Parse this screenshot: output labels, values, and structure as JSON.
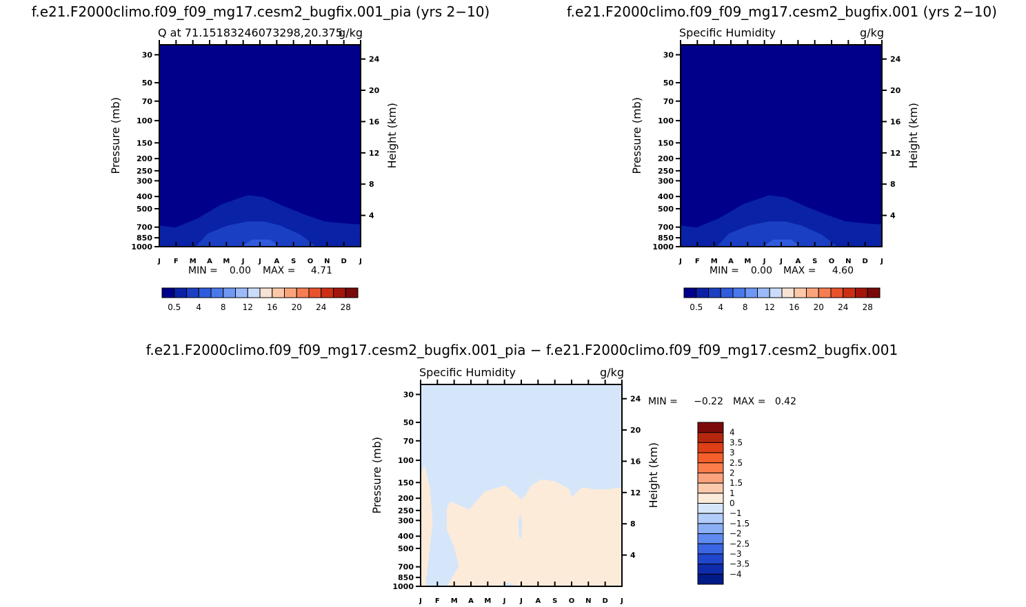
{
  "figure": {
    "case_a": "f.e21.F2000climo.f09_f09_mg17.cesm2_bugfix.001_pia",
    "case_b": "f.e21.F2000climo.f09_f09_mg17.cesm2_bugfix.001",
    "panel_a_title": "f.e21.F2000climo.f09_f09_mg17.cesm2_bugfix.001_pia (yrs 2−10)",
    "panel_b_title": "f.e21.F2000climo.f09_f09_mg17.cesm2_bugfix.001 (yrs 2−10)",
    "diff_title": "f.e21.F2000climo.f09_f09_mg17.cesm2_bugfix.001_pia − f.e21.F2000climo.f09_f09_mg17.cesm2_bugfix.001"
  },
  "chart_data": [
    {
      "type": "heatmap",
      "id": "panel_a",
      "left_label": "Q at 71.15183246073298,20.375",
      "right_label": "g/kg",
      "ylabel": "Pressure (mb)",
      "y2label": "Height (km)",
      "x_ticks": [
        "J",
        "F",
        "M",
        "A",
        "M",
        "J",
        "J",
        "A",
        "S",
        "O",
        "N",
        "D",
        "J"
      ],
      "y_ticks": [
        30,
        50,
        70,
        100,
        150,
        200,
        250,
        300,
        400,
        500,
        700,
        850,
        1000
      ],
      "y2_ticks": [
        24,
        20,
        16,
        12,
        8,
        4
      ],
      "ylim": [
        1000,
        25
      ],
      "stats": {
        "min_label": "MIN =",
        "min": "0.00",
        "max_label": "MAX =",
        "max": "4.71"
      },
      "colorbar": {
        "labels": [
          "0.5",
          "4",
          "8",
          "12",
          "16",
          "20",
          "24",
          "28"
        ],
        "colors": [
          "#00008b",
          "#0a22a6",
          "#1a3fc2",
          "#2f5bdc",
          "#4a79ec",
          "#6f98f4",
          "#9cbaf8",
          "#cadcfa",
          "#f8e2d4",
          "#fcc8aa",
          "#fba47c",
          "#f67c52",
          "#e8522c",
          "#cc3014",
          "#a3150a",
          "#7a0a0a"
        ]
      },
      "colors": {
        "background": "#00008b",
        "layer1": "#0a22a6",
        "layer2": "#1a3fc2",
        "layer3": "#2f5bdc"
      }
    },
    {
      "type": "heatmap",
      "id": "panel_b",
      "left_label": "Specific Humidity",
      "right_label": "g/kg",
      "ylabel": "Pressure (mb)",
      "y2label": "Height (km)",
      "x_ticks": [
        "J",
        "F",
        "M",
        "A",
        "M",
        "J",
        "J",
        "A",
        "S",
        "O",
        "N",
        "D",
        "J"
      ],
      "y_ticks": [
        30,
        50,
        70,
        100,
        150,
        200,
        250,
        300,
        400,
        500,
        700,
        850,
        1000
      ],
      "y2_ticks": [
        24,
        20,
        16,
        12,
        8,
        4
      ],
      "ylim": [
        1000,
        25
      ],
      "stats": {
        "min_label": "MIN =",
        "min": "0.00",
        "max_label": "MAX =",
        "max": "4.60"
      },
      "colorbar": {
        "labels": [
          "0.5",
          "4",
          "8",
          "12",
          "16",
          "20",
          "24",
          "28"
        ],
        "colors": [
          "#00008b",
          "#0a22a6",
          "#1a3fc2",
          "#2f5bdc",
          "#4a79ec",
          "#6f98f4",
          "#9cbaf8",
          "#cadcfa",
          "#f8e2d4",
          "#fcc8aa",
          "#fba47c",
          "#f67c52",
          "#e8522c",
          "#cc3014",
          "#a3150a",
          "#7a0a0a"
        ]
      },
      "colors": {
        "background": "#00008b",
        "layer1": "#0a22a6",
        "layer2": "#1a3fc2",
        "layer3": "#2f5bdc"
      }
    },
    {
      "type": "heatmap",
      "id": "panel_diff",
      "left_label": "Specific Humidity",
      "right_label": "g/kg",
      "ylabel": "Pressure (mb)",
      "y2label": "Height (km)",
      "x_ticks": [
        "J",
        "F",
        "M",
        "A",
        "M",
        "J",
        "J",
        "A",
        "S",
        "O",
        "N",
        "D",
        "J"
      ],
      "y_ticks": [
        30,
        50,
        70,
        100,
        150,
        200,
        250,
        300,
        400,
        500,
        700,
        850,
        1000
      ],
      "y2_ticks": [
        24,
        20,
        16,
        12,
        8,
        4
      ],
      "ylim": [
        1000,
        25
      ],
      "stats": {
        "min_label": "MIN =",
        "min": "−0.22",
        "max_label": "MAX =",
        "max": "0.42"
      },
      "colorbar": {
        "labels": [
          "4",
          "3.5",
          "3",
          "2.5",
          "2",
          "1.5",
          "1",
          "0",
          "−1",
          "−1.5",
          "−2",
          "−2.5",
          "−3",
          "−3.5",
          "−4"
        ],
        "colors": [
          "#7d0a0a",
          "#b5260e",
          "#de3f16",
          "#f45f2a",
          "#fb7e4a",
          "#fca27c",
          "#fcc9ac",
          "#fdebd9",
          "#d5e6fb",
          "#b2cdfa",
          "#8aaff6",
          "#5f8bf0",
          "#3a66e4",
          "#2046cc",
          "#0f2cac",
          "#001a88"
        ]
      },
      "colors": {
        "background": "#d5e6fb",
        "positive": "#fdebd9"
      }
    }
  ]
}
